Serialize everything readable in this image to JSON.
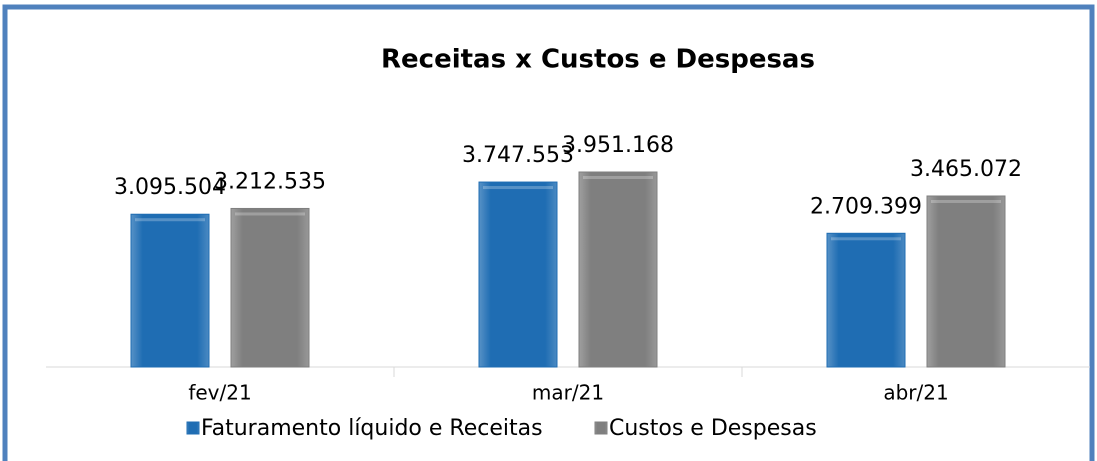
{
  "chart_data": {
    "type": "bar",
    "title": "Receitas x Custos e Despesas",
    "categories": [
      "fev/21",
      "mar/21",
      "abr/21"
    ],
    "series": [
      {
        "name": "Faturamento líquido e Receitas",
        "color": "#1f6db3",
        "values": [
          3095504,
          3747553,
          2709399
        ],
        "value_labels": [
          "3.095.504",
          "3.747.553",
          "2.709.399"
        ]
      },
      {
        "name": "Custos e Despesas",
        "color": "#7f7f7f",
        "values": [
          3212535,
          3951168,
          3465072
        ],
        "value_labels": [
          "3.212.535",
          "3.951.168",
          "3.465.072"
        ]
      }
    ],
    "legend": "bottom"
  }
}
